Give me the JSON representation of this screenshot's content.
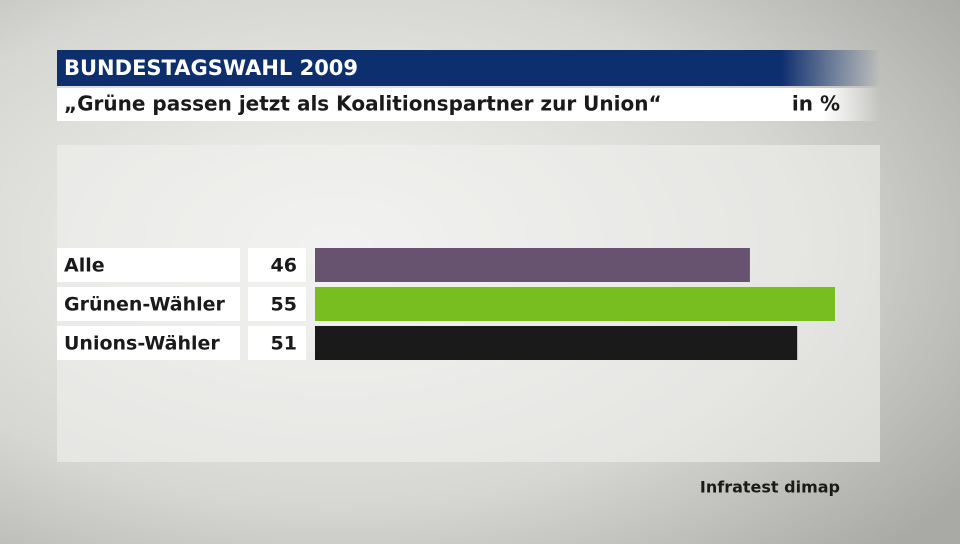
{
  "chart_data": {
    "type": "bar",
    "title": "BUNDESTAGSWAHL 2009",
    "subtitle": "„Grüne passen jetzt als Koalitionspartner zur Union“",
    "unit": "in %",
    "source": "Infratest dimap",
    "categories": [
      "Alle",
      "Grünen-Wähler",
      "Unions-Wähler"
    ],
    "values": [
      46,
      55,
      51
    ],
    "colors": [
      "#67526f",
      "#78be20",
      "#1a1a1a"
    ]
  }
}
